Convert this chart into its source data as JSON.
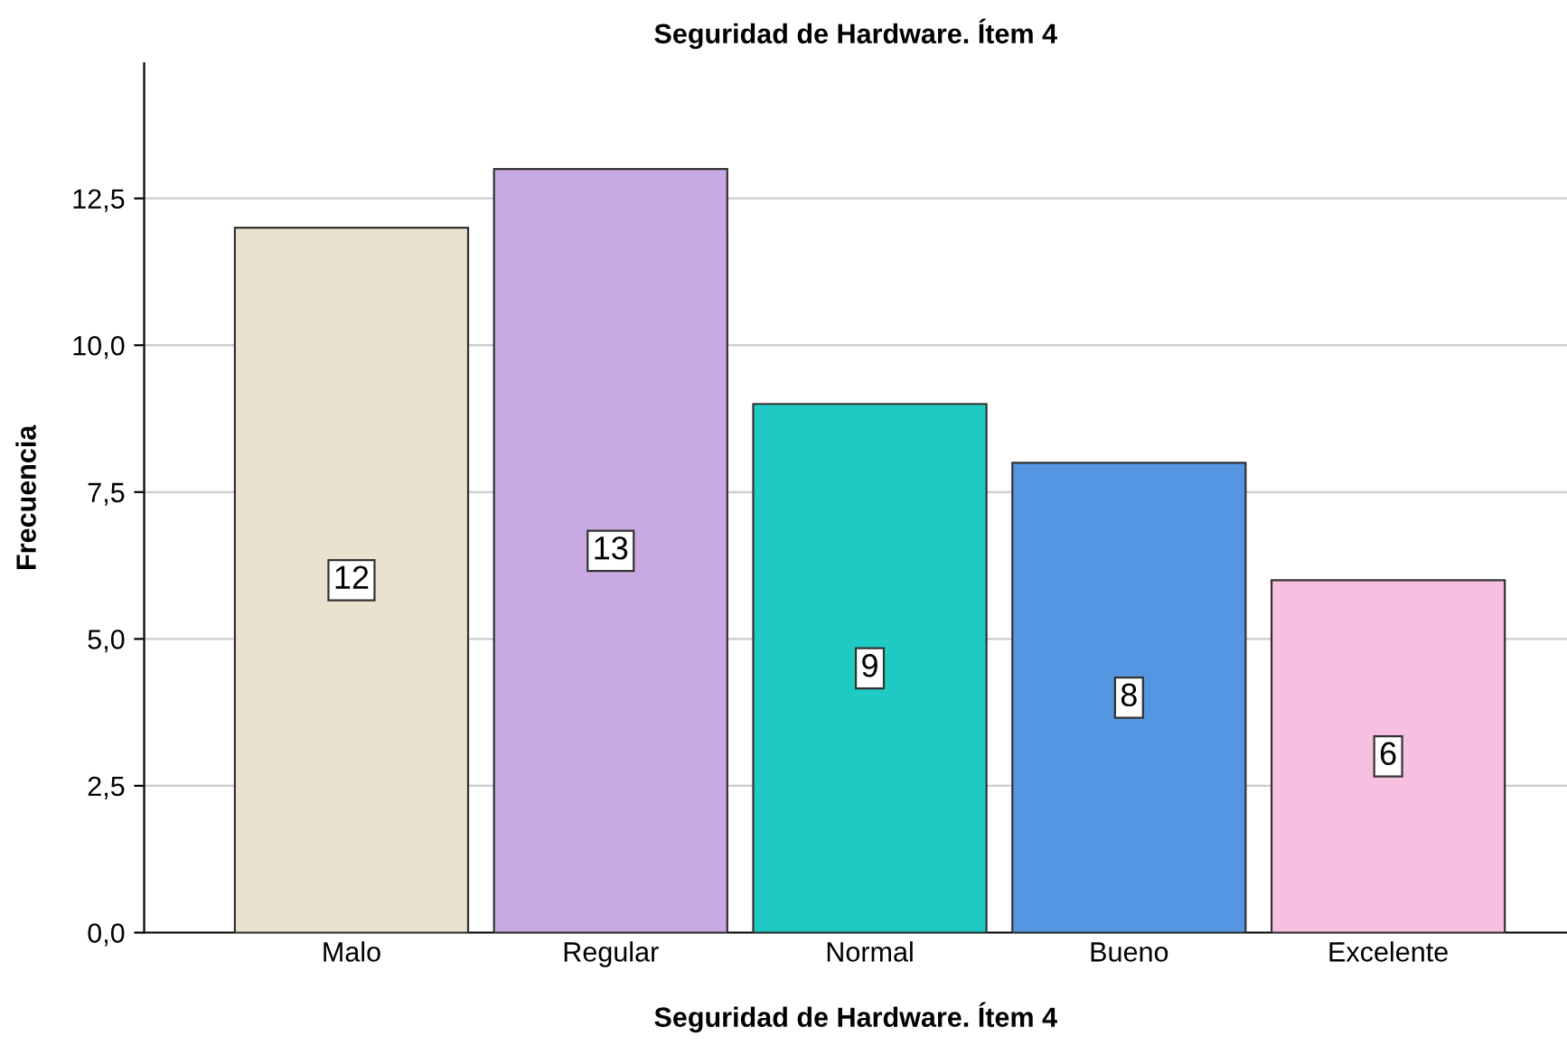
{
  "chart_data": {
    "type": "bar",
    "title": "Seguridad de Hardware. Ítem 4",
    "xlabel": "Seguridad de Hardware. Ítem 4",
    "ylabel": "Frecuencia",
    "categories": [
      "Malo",
      "Regular",
      "Normal",
      "Bueno",
      "Excelente"
    ],
    "values": [
      12,
      13,
      9,
      8,
      6
    ],
    "colors": [
      "#e8e2cf",
      "#c9a9e2",
      "#1fcac5",
      "#5596e3",
      "#f7bfe0"
    ],
    "ylim": [
      0,
      14.8
    ],
    "yticks": [
      {
        "value": 0,
        "label": "0,0"
      },
      {
        "value": 2.5,
        "label": "2,5"
      },
      {
        "value": 5,
        "label": "5,0"
      },
      {
        "value": 7.5,
        "label": "7,5"
      },
      {
        "value": 10,
        "label": "10,0"
      },
      {
        "value": 12.5,
        "label": "12,5"
      }
    ],
    "grid": "y",
    "data_labels": true,
    "legend": false
  }
}
